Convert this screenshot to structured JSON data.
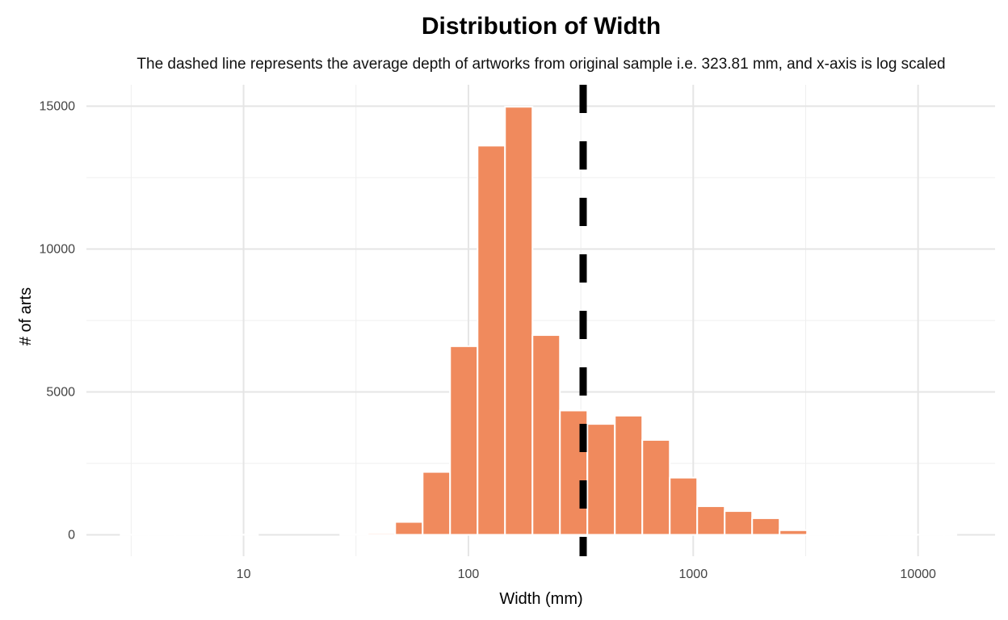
{
  "chart_data": {
    "type": "bar",
    "title": "Distribution of Width",
    "subtitle": "The dashed line represents the average depth of artworks from original sample i.e. 323.81 mm, and x-axis is log scaled",
    "xlabel": "Width (mm)",
    "ylabel": "# of arts",
    "x_scale": "log10",
    "xlim": [
      2.0,
      22000
    ],
    "ylim": [
      -750,
      15750
    ],
    "x_ticks": [
      {
        "value": 10,
        "label": "10"
      },
      {
        "value": 100,
        "label": "100"
      },
      {
        "value": 1000,
        "label": "1000"
      },
      {
        "value": 10000,
        "label": "10000"
      }
    ],
    "y_ticks": [
      {
        "value": 0,
        "label": "0"
      },
      {
        "value": 5000,
        "label": "5000"
      },
      {
        "value": 10000,
        "label": "10000"
      },
      {
        "value": 15000,
        "label": "15000"
      }
    ],
    "grid": true,
    "legend": "none",
    "colors": {
      "bar": "#F08A5D",
      "bar_outline": "#FFFFFF",
      "grid": "#E5E5E5",
      "reference_line": "#000000"
    },
    "reference_line": {
      "value": 323.81,
      "style": "dashed"
    },
    "bins": [
      {
        "x0": 2.84,
        "x1": 3.76,
        "count": 5
      },
      {
        "x0": 3.76,
        "x1": 4.98,
        "count": 5
      },
      {
        "x0": 4.98,
        "x1": 6.6,
        "count": 5
      },
      {
        "x0": 6.6,
        "x1": 8.74,
        "count": 5
      },
      {
        "x0": 8.74,
        "x1": 11.58,
        "count": 5
      },
      {
        "x0": 11.58,
        "x1": 15.34,
        "count": 0
      },
      {
        "x0": 15.34,
        "x1": 20.32,
        "count": 0
      },
      {
        "x0": 20.32,
        "x1": 26.92,
        "count": 0
      },
      {
        "x0": 26.92,
        "x1": 35.66,
        "count": 20
      },
      {
        "x0": 35.66,
        "x1": 47.24,
        "count": 60
      },
      {
        "x0": 47.24,
        "x1": 62.58,
        "count": 450
      },
      {
        "x0": 62.58,
        "x1": 82.9,
        "count": 2200
      },
      {
        "x0": 82.9,
        "x1": 109.82,
        "count": 6600
      },
      {
        "x0": 109.82,
        "x1": 145.48,
        "count": 13620
      },
      {
        "x0": 145.48,
        "x1": 192.72,
        "count": 14980
      },
      {
        "x0": 192.72,
        "x1": 255.3,
        "count": 6990
      },
      {
        "x0": 255.3,
        "x1": 338.2,
        "count": 4350
      },
      {
        "x0": 338.2,
        "x1": 448.02,
        "count": 3880
      },
      {
        "x0": 448.02,
        "x1": 593.5,
        "count": 4170
      },
      {
        "x0": 593.5,
        "x1": 786.24,
        "count": 3320
      },
      {
        "x0": 786.24,
        "x1": 1041.54,
        "count": 2000
      },
      {
        "x0": 1041.54,
        "x1": 1379.76,
        "count": 1000
      },
      {
        "x0": 1379.76,
        "x1": 1827.8,
        "count": 830
      },
      {
        "x0": 1827.8,
        "x1": 2421.32,
        "count": 580
      },
      {
        "x0": 2421.32,
        "x1": 3207.58,
        "count": 160
      },
      {
        "x0": 3207.58,
        "x1": 4249.14,
        "count": 20
      },
      {
        "x0": 4249.14,
        "x1": 5628.9,
        "count": 10
      },
      {
        "x0": 5628.9,
        "x1": 7456.7,
        "count": 5
      },
      {
        "x0": 7456.7,
        "x1": 9878.04,
        "count": 5
      },
      {
        "x0": 9878.04,
        "x1": 13085.62,
        "count": 5
      },
      {
        "x0": 13085.62,
        "x1": 14800.0,
        "count": 5
      }
    ]
  }
}
